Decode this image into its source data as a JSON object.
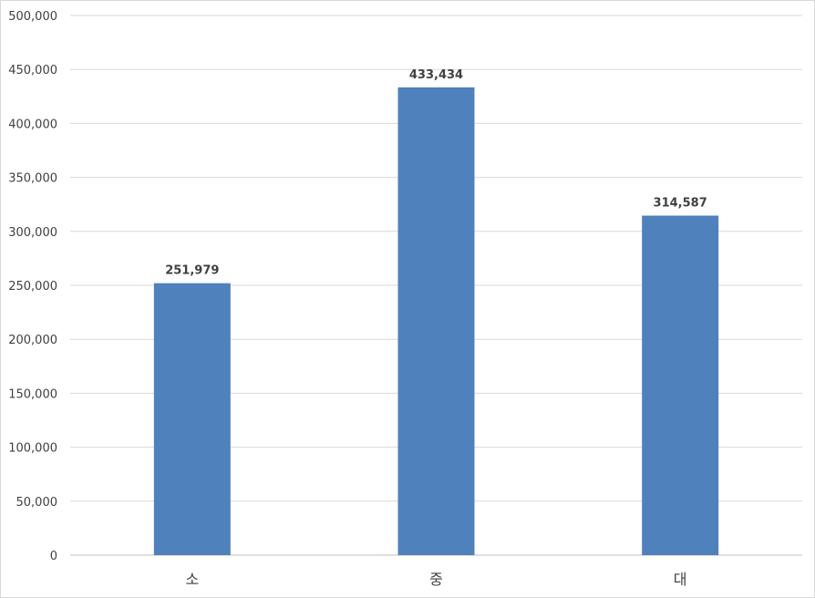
{
  "chart_data": {
    "type": "bar",
    "categories": [
      "소",
      "중",
      "대"
    ],
    "values": [
      251979,
      433434,
      314587
    ],
    "data_labels": [
      "251,979",
      "433,434",
      "314,587"
    ],
    "ylim": [
      0,
      500000
    ],
    "yticks": [
      0,
      50000,
      100000,
      150000,
      200000,
      250000,
      300000,
      350000,
      400000,
      450000,
      500000
    ],
    "ytick_labels": [
      "0",
      "50,000",
      "100,000",
      "150,000",
      "200,000",
      "250,000",
      "300,000",
      "350,000",
      "400,000",
      "450,000",
      "500,000"
    ],
    "title": "",
    "xlabel": "",
    "ylabel": "",
    "grid": true,
    "legend": "none",
    "bar_color": "#4f81bd"
  }
}
